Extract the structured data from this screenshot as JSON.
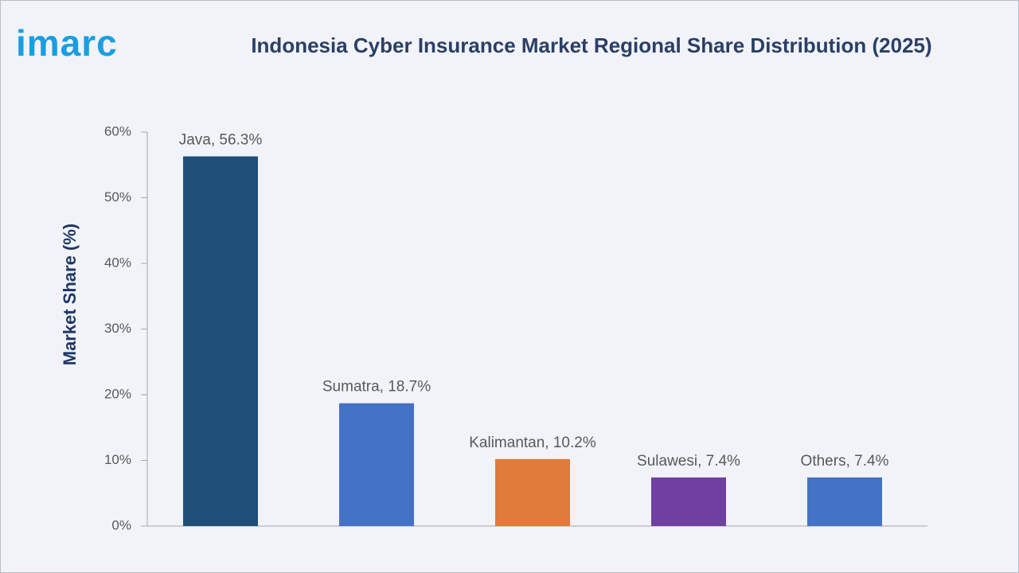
{
  "logo": "imarc",
  "chart_data": {
    "type": "bar",
    "title": "Indonesia Cyber Insurance Market Regional Share Distribution (2025)",
    "y_label": "Market Share (%)",
    "values": [
      56.3,
      18.7,
      10.2,
      7.4,
      7.4
    ],
    "value_labels": [
      "Java, 56.3%",
      "Sumatra, 18.7%",
      "Kalimantan, 10.2%",
      "Sulawesi, 7.4%",
      "Others, 7.4%"
    ],
    "colors": [
      "#1f4e79",
      "#4472c4",
      "#e07b39",
      "#7040a0",
      "#4472c4"
    ],
    "ylim": [
      0,
      60
    ],
    "yticks": [
      {
        "value": 0,
        "label": "0%"
      },
      {
        "value": 10,
        "label": "10%"
      },
      {
        "value": 20,
        "label": "20%"
      },
      {
        "value": 30,
        "label": "30%"
      },
      {
        "value": 40,
        "label": "40%"
      },
      {
        "value": 50,
        "label": "50%"
      },
      {
        "value": 60,
        "label": "60%"
      }
    ]
  }
}
